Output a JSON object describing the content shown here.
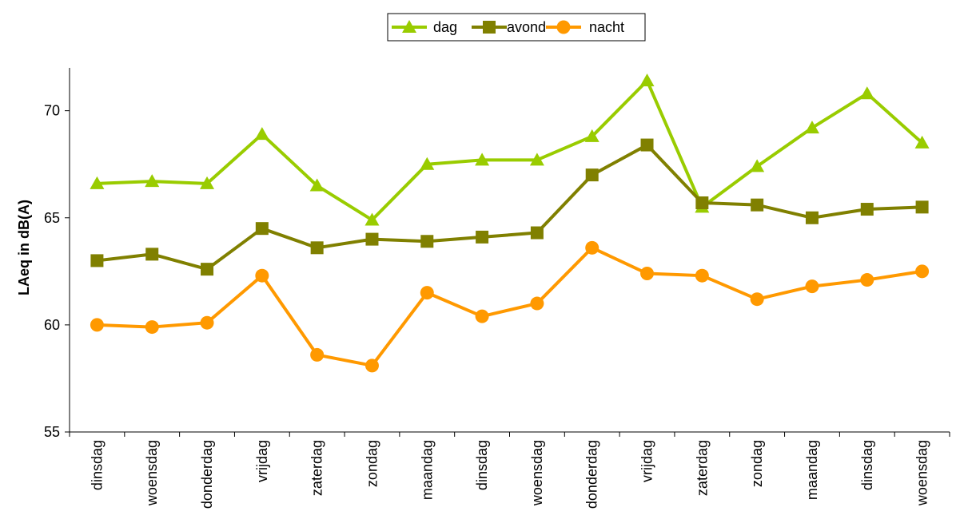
{
  "chart_data": {
    "type": "line",
    "title": "",
    "xlabel": "",
    "ylabel": "LAeq in dB(A)",
    "ylim": [
      55,
      72
    ],
    "yticks": [
      55,
      60,
      65,
      70
    ],
    "grid": false,
    "legend_position": "top-center",
    "categories": [
      "dinsdag",
      "woensdag",
      "donderdag",
      "vrijdag",
      "zaterdag",
      "zondag",
      "maandag",
      "dinsdag",
      "woensdag",
      "donderdag",
      "vrijdag",
      "zaterdag",
      "zondag",
      "maandag",
      "dinsdag",
      "woensdag"
    ],
    "series": [
      {
        "name": "dag",
        "color": "#99cc00",
        "marker": "triangle",
        "values": [
          66.6,
          66.7,
          66.6,
          68.9,
          66.5,
          64.9,
          67.5,
          67.7,
          67.7,
          68.8,
          71.4,
          65.5,
          67.4,
          69.2,
          70.8,
          68.5
        ]
      },
      {
        "name": "avond",
        "color": "#808000",
        "marker": "square",
        "values": [
          63.0,
          63.3,
          62.6,
          64.5,
          63.6,
          64.0,
          63.9,
          64.1,
          64.3,
          67.0,
          68.4,
          65.7,
          65.6,
          65.0,
          65.4,
          65.5
        ]
      },
      {
        "name": "nacht",
        "color": "#ff9900",
        "marker": "circle",
        "values": [
          60.0,
          59.9,
          60.1,
          62.3,
          58.6,
          58.1,
          61.5,
          60.4,
          61.0,
          63.6,
          62.4,
          62.3,
          61.2,
          61.8,
          62.1,
          62.5
        ]
      }
    ]
  }
}
